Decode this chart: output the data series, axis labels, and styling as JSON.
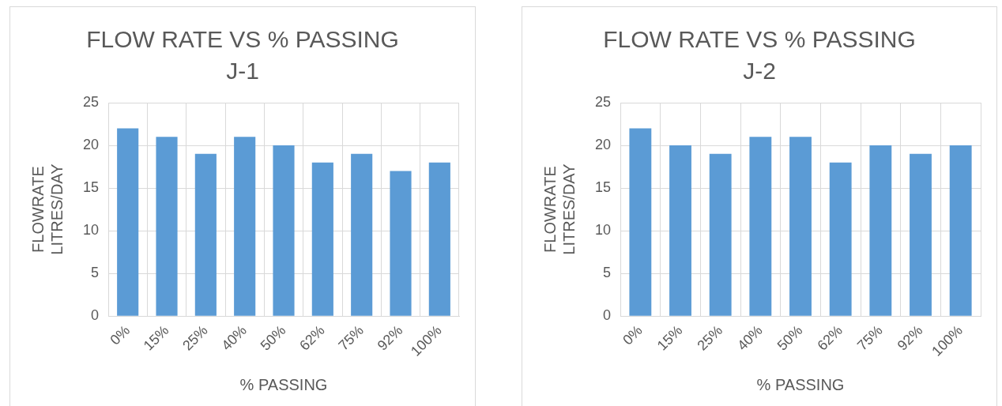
{
  "chart_data": [
    {
      "type": "bar",
      "title": "FLOW RATE VS % PASSING",
      "subtitle": "J-1",
      "xlabel": "% PASSING",
      "ylabel": "FLOWRATE LITRES/DAY",
      "categories": [
        "0%",
        "15%",
        "25%",
        "40%",
        "50%",
        "62%",
        "75%",
        "92%",
        "100%"
      ],
      "values": [
        22,
        21,
        19,
        21,
        20,
        18,
        19,
        17,
        18
      ],
      "color": "#5b9bd5",
      "ylim": [
        0,
        25
      ],
      "yticks": [
        0,
        5,
        10,
        15,
        20,
        25
      ],
      "grid": true,
      "legend": false
    },
    {
      "type": "bar",
      "title": "FLOW RATE VS % PASSING",
      "subtitle": "J-2",
      "xlabel": "% PASSING",
      "ylabel": "FLOWRATE LITRES/DAY",
      "categories": [
        "0%",
        "15%",
        "25%",
        "40%",
        "50%",
        "62%",
        "75%",
        "92%",
        "100%"
      ],
      "values": [
        22,
        20,
        19,
        21,
        21,
        18,
        20,
        19,
        20
      ],
      "color": "#5b9bd5",
      "ylim": [
        0,
        25
      ],
      "yticks": [
        0,
        5,
        10,
        15,
        20,
        25
      ],
      "grid": true,
      "legend": false
    }
  ]
}
